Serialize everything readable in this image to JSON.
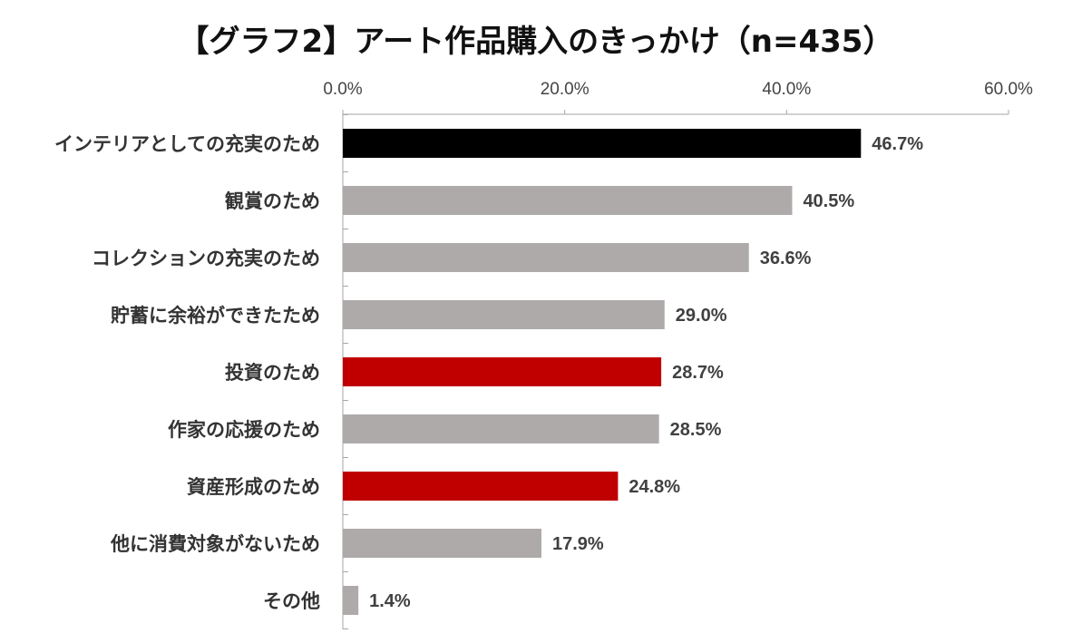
{
  "chart_data": {
    "type": "bar",
    "orientation": "horizontal",
    "title": "【グラフ2】アート作品購入のきっかけ（n=435）",
    "categories": [
      "インテリアとしての充実のため",
      "観賞のため",
      "コレクションの充実のため",
      "貯蓄に余裕ができたため",
      "投資のため",
      "作家の応援のため",
      "資産形成のため",
      "他に消費対象がないため",
      "その他"
    ],
    "values": [
      46.7,
      40.5,
      36.6,
      29.0,
      28.7,
      28.5,
      24.8,
      17.9,
      1.4
    ],
    "value_labels": [
      "46.7%",
      "40.5%",
      "36.6%",
      "29.0%",
      "28.7%",
      "28.5%",
      "24.8%",
      "17.9%",
      "1.4%"
    ],
    "bar_colors": [
      "#000000",
      "#aeaaaa",
      "#aeaaaa",
      "#aeaaaa",
      "#c00000",
      "#aeaaaa",
      "#c00000",
      "#aeaaaa",
      "#aeaaaa"
    ],
    "xlim": [
      0,
      60
    ],
    "xticks": [
      0,
      20,
      40,
      60
    ],
    "xtick_labels": [
      "0.0%",
      "20.0%",
      "40.0%",
      "60.0%"
    ],
    "x_axis_position": "top",
    "grid": false,
    "legend": "none",
    "axis_color": "#a6a6a6"
  }
}
